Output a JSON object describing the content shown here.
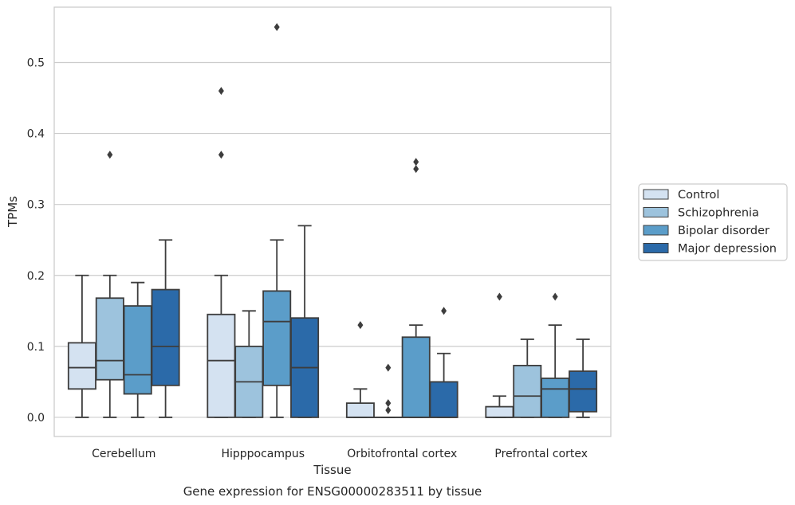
{
  "caption": "Gene expression for ENSG00000283511 by tissue",
  "chart_data": {
    "type": "box",
    "title": "",
    "xlabel": "Tissue",
    "ylabel": "TPMs",
    "ylim": [
      -0.027,
      0.578
    ],
    "yticks": [
      0.0,
      0.1,
      0.2,
      0.3,
      0.4,
      0.5
    ],
    "ytick_labels": [
      "0.0",
      "0.1",
      "0.2",
      "0.3",
      "0.4",
      "0.5"
    ],
    "grid": "horizontal",
    "legend_position": "right",
    "categories": [
      "Cerebellum",
      "Hipppocampus",
      "Orbitofrontal cortex",
      "Prefrontal cortex"
    ],
    "series": [
      {
        "name": "Control",
        "color": "#d4e2f1",
        "boxes": [
          {
            "whisker_low": 0.0,
            "q1": 0.04,
            "median": 0.07,
            "q3": 0.105,
            "whisker_high": 0.2,
            "outliers": []
          },
          {
            "whisker_low": 0.0,
            "q1": 0.0,
            "median": 0.08,
            "q3": 0.145,
            "whisker_high": 0.2,
            "outliers": [
              0.37,
              0.46
            ]
          },
          {
            "whisker_low": 0.0,
            "q1": 0.0,
            "median": 0.0,
            "q3": 0.02,
            "whisker_high": 0.04,
            "outliers": [
              0.13
            ]
          },
          {
            "whisker_low": 0.0,
            "q1": 0.0,
            "median": 0.0,
            "q3": 0.015,
            "whisker_high": 0.03,
            "outliers": [
              0.17
            ]
          }
        ]
      },
      {
        "name": "Schizophrenia",
        "color": "#9dc3dd",
        "boxes": [
          {
            "whisker_low": 0.0,
            "q1": 0.053,
            "median": 0.08,
            "q3": 0.168,
            "whisker_high": 0.2,
            "outliers": [
              0.37
            ]
          },
          {
            "whisker_low": 0.0,
            "q1": 0.0,
            "median": 0.05,
            "q3": 0.1,
            "whisker_high": 0.15,
            "outliers": []
          },
          {
            "whisker_low": 0.0,
            "q1": 0.0,
            "median": 0.0,
            "q3": 0.0,
            "whisker_high": 0.0,
            "outliers": [
              0.01,
              0.02,
              0.07
            ]
          },
          {
            "whisker_low": 0.0,
            "q1": 0.0,
            "median": 0.03,
            "q3": 0.073,
            "whisker_high": 0.11,
            "outliers": []
          }
        ]
      },
      {
        "name": "Bipolar disorder",
        "color": "#5b9dc9",
        "boxes": [
          {
            "whisker_low": 0.0,
            "q1": 0.033,
            "median": 0.06,
            "q3": 0.157,
            "whisker_high": 0.19,
            "outliers": []
          },
          {
            "whisker_low": 0.0,
            "q1": 0.045,
            "median": 0.135,
            "q3": 0.178,
            "whisker_high": 0.25,
            "outliers": [
              0.55
            ]
          },
          {
            "whisker_low": 0.0,
            "q1": 0.0,
            "median": 0.0,
            "q3": 0.113,
            "whisker_high": 0.13,
            "outliers": [
              0.35,
              0.36
            ]
          },
          {
            "whisker_low": 0.0,
            "q1": 0.0,
            "median": 0.04,
            "q3": 0.055,
            "whisker_high": 0.13,
            "outliers": [
              0.17
            ]
          }
        ]
      },
      {
        "name": "Major depression",
        "color": "#2b6aa9",
        "boxes": [
          {
            "whisker_low": 0.0,
            "q1": 0.045,
            "median": 0.1,
            "q3": 0.18,
            "whisker_high": 0.25,
            "outliers": []
          },
          {
            "whisker_low": 0.0,
            "q1": 0.0,
            "median": 0.07,
            "q3": 0.14,
            "whisker_high": 0.27,
            "outliers": []
          },
          {
            "whisker_low": 0.0,
            "q1": 0.0,
            "median": 0.0,
            "q3": 0.05,
            "whisker_high": 0.09,
            "outliers": [
              0.15
            ]
          },
          {
            "whisker_low": 0.0,
            "q1": 0.008,
            "median": 0.04,
            "q3": 0.065,
            "whisker_high": 0.11,
            "outliers": []
          }
        ]
      }
    ]
  }
}
